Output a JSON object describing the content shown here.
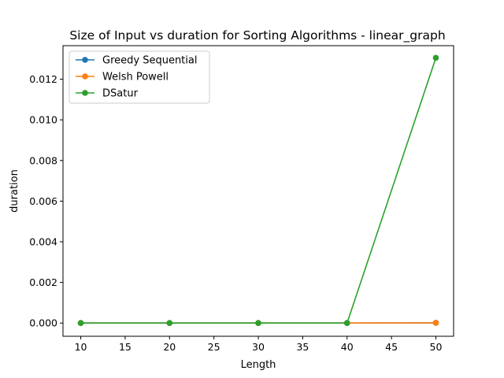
{
  "chart_data": {
    "type": "line",
    "title": "Size of Input vs duration for Sorting Algorithms - linear_graph",
    "xlabel": "Length",
    "ylabel": "duration",
    "x": [
      10,
      20,
      30,
      40,
      50
    ],
    "xlim": [
      8,
      52
    ],
    "ylim": [
      -0.00065,
      0.01365
    ],
    "xticks": [
      10,
      15,
      20,
      25,
      30,
      35,
      40,
      45,
      50
    ],
    "xtick_labels": [
      "10",
      "15",
      "20",
      "25",
      "30",
      "35",
      "40",
      "45",
      "50"
    ],
    "yticks": [
      0,
      0.002,
      0.004,
      0.006,
      0.008,
      0.01,
      0.012
    ],
    "ytick_labels": [
      "0.000",
      "0.002",
      "0.004",
      "0.006",
      "0.008",
      "0.010",
      "0.012"
    ],
    "grid": false,
    "legend_position": "top-left",
    "series": [
      {
        "name": "Greedy Sequential",
        "color": "#1f77b4",
        "values": [
          0.0,
          0.0,
          0.0,
          0.0,
          1e-05
        ]
      },
      {
        "name": "Welsh Powell",
        "color": "#ff7f0e",
        "values": [
          0.0,
          0.0,
          0.0,
          0.0,
          1e-05
        ]
      },
      {
        "name": "DSatur",
        "color": "#2ca02c",
        "values": [
          0.0,
          0.0,
          0.0,
          0.0,
          0.01305
        ]
      }
    ]
  }
}
